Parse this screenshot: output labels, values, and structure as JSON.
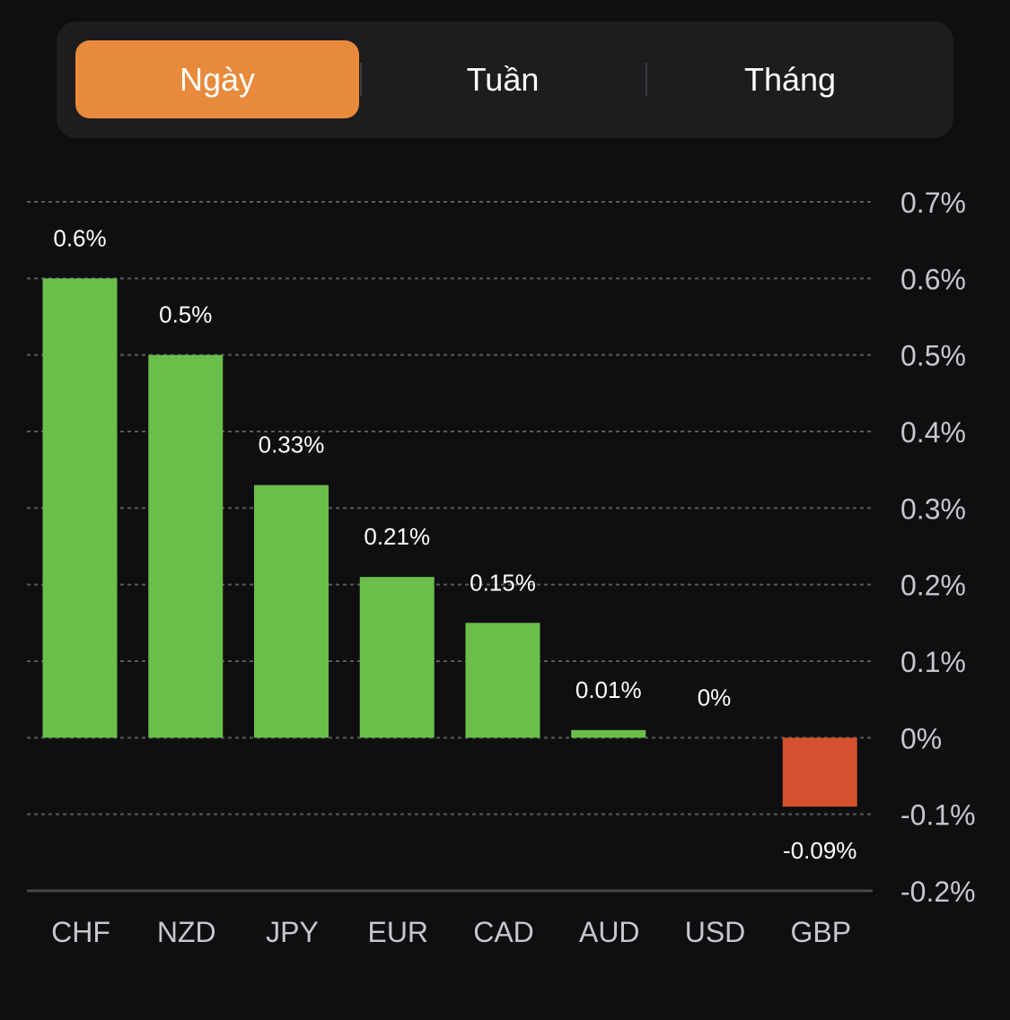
{
  "tabs": [
    {
      "label": "Ngày",
      "active": true
    },
    {
      "label": "Tuần",
      "active": false
    },
    {
      "label": "Tháng",
      "active": false
    }
  ],
  "colors": {
    "background": "#0f0f11",
    "tab_active": "#e88a3c",
    "positive": "#6abf4b",
    "negative": "#d4502e",
    "grid": "#5a5a5e",
    "axis_text": "#c7c7cc",
    "label_text": "#ffffff"
  },
  "chart_data": {
    "type": "bar",
    "categories": [
      "CHF",
      "NZD",
      "JPY",
      "EUR",
      "CAD",
      "AUD",
      "USD",
      "GBP"
    ],
    "values": [
      0.6,
      0.5,
      0.33,
      0.21,
      0.15,
      0.01,
      0,
      -0.09
    ],
    "data_labels": [
      "0.6%",
      "0.5%",
      "0.33%",
      "0.21%",
      "0.15%",
      "0.01%",
      "0%",
      "-0.09%"
    ],
    "ylim": [
      -0.2,
      0.7
    ],
    "yticks": [
      0.7,
      0.6,
      0.5,
      0.4,
      0.3,
      0.2,
      0.1,
      0,
      -0.1,
      -0.2
    ],
    "ytick_labels": [
      "0.7%",
      "0.6%",
      "0.5%",
      "0.4%",
      "0.3%",
      "0.2%",
      "0.1%",
      "0%",
      "-0.1%",
      "-0.2%"
    ],
    "y_axis_side": "right",
    "grid": true,
    "title": "",
    "xlabel": "",
    "ylabel": ""
  }
}
